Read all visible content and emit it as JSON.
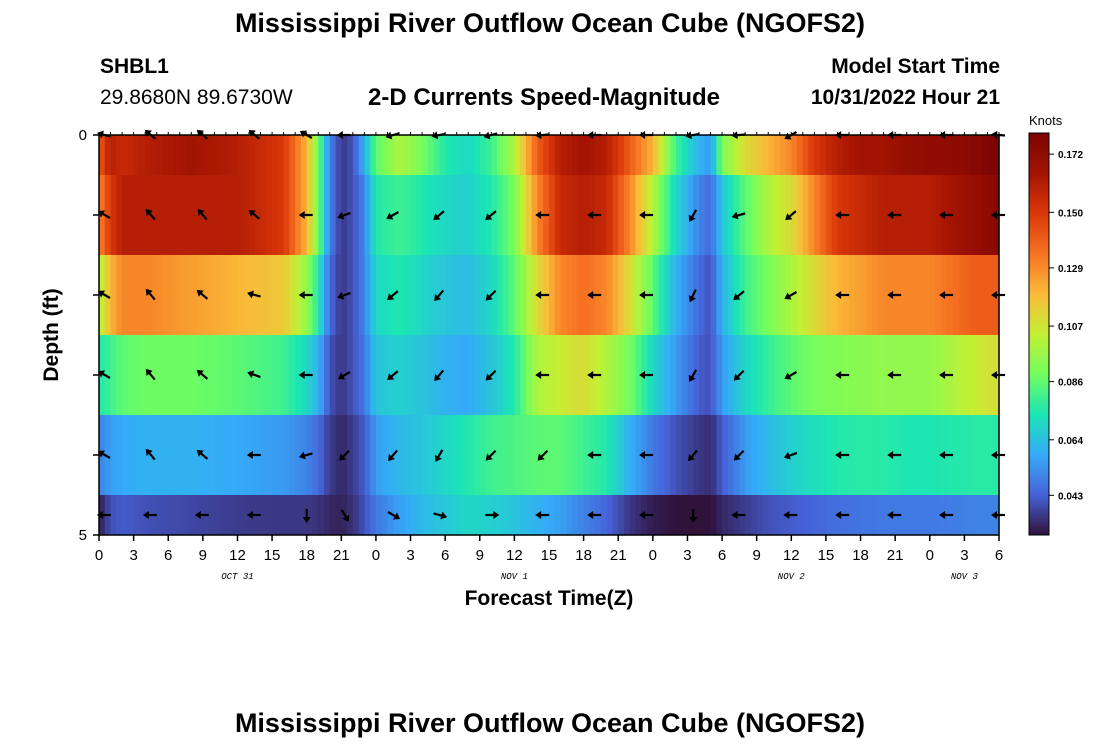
{
  "header": {
    "title": "Mississippi River Outflow Ocean Cube (NGOFS2)",
    "station": "SHBL1",
    "coords": "29.8680N  89.6730W",
    "subtitle": "2-D Currents Speed-Magnitude",
    "start_label": "Model Start Time",
    "start_value": "10/31/2022 Hour 21"
  },
  "footer": {
    "title": "Mississippi River Outflow Ocean Cube (NGOFS2)"
  },
  "chart_data": {
    "type": "heatmap",
    "title": "2-D Currents Speed-Magnitude",
    "xlabel": "Forecast Time(Z)",
    "ylabel": "Depth (ft)",
    "colorbar_label": "Knots",
    "colorbar_ticks": [
      "0.172",
      "0.150",
      "0.129",
      "0.107",
      "0.086",
      "0.064",
      "0.043"
    ],
    "colorbar_range": [
      0.028,
      0.18
    ],
    "x_tick_labels": [
      "0",
      "3",
      "6",
      "9",
      "12",
      "15",
      "18",
      "21",
      "0",
      "3",
      "6",
      "9",
      "12",
      "15",
      "18",
      "21",
      "0",
      "3",
      "6",
      "9",
      "12",
      "15",
      "18",
      "21",
      "0",
      "3",
      "6"
    ],
    "date_labels": [
      {
        "label": "OCT 31",
        "hour": 12
      },
      {
        "label": "NOV 1",
        "hour": 36
      },
      {
        "label": "NOV 2",
        "hour": 60
      },
      {
        "label": "NOV 3",
        "hour": 75
      }
    ],
    "x_range_hours": [
      0,
      78
    ],
    "y_tick_labels": [
      "0",
      "",
      "",
      "",
      "",
      "5"
    ],
    "y_range_ft": [
      0,
      5
    ],
    "depth_bands_ft": [
      [
        0,
        0.5
      ],
      [
        0.5,
        1.5
      ],
      [
        1.5,
        2.5
      ],
      [
        2.5,
        3.5
      ],
      [
        3.5,
        4.5
      ],
      [
        4.5,
        5
      ]
    ],
    "speed_rows": [
      {
        "depth_ft": 0.25,
        "t_hours": [
          0,
          1,
          2,
          4,
          8,
          12,
          16,
          18,
          19,
          20,
          21,
          22,
          23,
          24,
          26,
          28,
          30,
          32,
          34,
          36,
          38,
          40,
          42,
          44,
          46,
          48,
          50,
          52,
          53,
          54,
          56,
          58,
          60,
          62,
          64,
          66,
          68,
          70,
          72,
          74,
          76,
          78
        ],
        "speed": [
          0.14,
          0.16,
          0.155,
          0.16,
          0.165,
          0.16,
          0.15,
          0.12,
          0.09,
          0.05,
          0.035,
          0.04,
          0.06,
          0.085,
          0.1,
          0.09,
          0.075,
          0.07,
          0.08,
          0.1,
          0.14,
          0.16,
          0.165,
          0.16,
          0.14,
          0.12,
          0.08,
          0.06,
          0.055,
          0.09,
          0.11,
          0.12,
          0.13,
          0.15,
          0.16,
          0.165,
          0.165,
          0.17,
          0.172,
          0.172,
          0.175,
          0.18
        ]
      },
      {
        "depth_ft": 1.0,
        "t_hours": [
          0,
          1,
          2,
          4,
          8,
          12,
          16,
          18,
          19,
          20,
          21,
          22,
          23,
          24,
          26,
          28,
          30,
          32,
          34,
          36,
          38,
          40,
          42,
          44,
          46,
          48,
          50,
          52,
          53,
          54,
          56,
          58,
          60,
          62,
          64,
          66,
          68,
          70,
          72,
          74,
          76,
          78
        ],
        "speed": [
          0.13,
          0.15,
          0.16,
          0.16,
          0.16,
          0.16,
          0.15,
          0.12,
          0.09,
          0.05,
          0.035,
          0.04,
          0.05,
          0.075,
          0.08,
          0.075,
          0.07,
          0.068,
          0.075,
          0.09,
          0.13,
          0.155,
          0.16,
          0.155,
          0.13,
          0.1,
          0.07,
          0.05,
          0.045,
          0.065,
          0.085,
          0.1,
          0.11,
          0.13,
          0.15,
          0.155,
          0.16,
          0.16,
          0.16,
          0.165,
          0.17,
          0.175
        ]
      },
      {
        "depth_ft": 2.0,
        "t_hours": [
          0,
          1,
          2,
          4,
          8,
          12,
          16,
          18,
          19,
          20,
          21,
          22,
          23,
          24,
          26,
          28,
          30,
          32,
          34,
          36,
          38,
          40,
          42,
          44,
          46,
          48,
          50,
          52,
          53,
          54,
          56,
          58,
          60,
          62,
          64,
          66,
          68,
          70,
          72,
          74,
          76,
          78
        ],
        "speed": [
          0.1,
          0.12,
          0.13,
          0.13,
          0.125,
          0.12,
          0.115,
          0.095,
          0.075,
          0.045,
          0.035,
          0.04,
          0.05,
          0.07,
          0.075,
          0.07,
          0.065,
          0.063,
          0.07,
          0.085,
          0.11,
          0.13,
          0.135,
          0.13,
          0.11,
          0.085,
          0.06,
          0.045,
          0.04,
          0.06,
          0.08,
          0.09,
          0.1,
          0.11,
          0.12,
          0.125,
          0.13,
          0.13,
          0.13,
          0.135,
          0.14,
          0.14
        ]
      },
      {
        "depth_ft": 3.0,
        "t_hours": [
          0,
          1,
          2,
          4,
          8,
          12,
          16,
          18,
          19,
          20,
          21,
          22,
          23,
          24,
          26,
          28,
          30,
          32,
          34,
          36,
          38,
          40,
          42,
          44,
          46,
          48,
          50,
          52,
          53,
          54,
          56,
          58,
          60,
          62,
          64,
          66,
          68,
          70,
          72,
          74,
          76,
          78
        ],
        "speed": [
          0.075,
          0.08,
          0.085,
          0.088,
          0.088,
          0.085,
          0.08,
          0.07,
          0.06,
          0.04,
          0.035,
          0.04,
          0.048,
          0.065,
          0.068,
          0.065,
          0.06,
          0.058,
          0.065,
          0.075,
          0.1,
          0.105,
          0.11,
          0.1,
          0.09,
          0.07,
          0.055,
          0.042,
          0.04,
          0.055,
          0.07,
          0.078,
          0.085,
          0.09,
          0.092,
          0.093,
          0.095,
          0.095,
          0.095,
          0.1,
          0.105,
          0.11
        ]
      },
      {
        "depth_ft": 4.0,
        "t_hours": [
          0,
          1,
          2,
          4,
          8,
          12,
          16,
          18,
          19,
          20,
          21,
          22,
          23,
          24,
          26,
          28,
          30,
          32,
          34,
          36,
          38,
          40,
          42,
          44,
          46,
          48,
          50,
          52,
          53,
          54,
          56,
          58,
          60,
          62,
          64,
          66,
          68,
          70,
          72,
          74,
          76,
          78
        ],
        "speed": [
          0.05,
          0.056,
          0.058,
          0.06,
          0.06,
          0.058,
          0.055,
          0.05,
          0.045,
          0.036,
          0.032,
          0.036,
          0.042,
          0.055,
          0.062,
          0.065,
          0.07,
          0.075,
          0.08,
          0.082,
          0.085,
          0.085,
          0.08,
          0.075,
          0.06,
          0.048,
          0.04,
          0.035,
          0.033,
          0.042,
          0.055,
          0.062,
          0.068,
          0.072,
          0.075,
          0.076,
          0.076,
          0.074,
          0.074,
          0.075,
          0.076,
          0.076
        ]
      },
      {
        "depth_ft": 4.75,
        "t_hours": [
          0,
          1,
          2,
          4,
          8,
          12,
          16,
          18,
          19,
          20,
          21,
          22,
          23,
          24,
          26,
          28,
          30,
          32,
          34,
          36,
          38,
          40,
          42,
          44,
          46,
          48,
          50,
          52,
          53,
          54,
          56,
          58,
          60,
          62,
          64,
          66,
          68,
          70,
          72,
          74,
          76,
          78
        ],
        "speed": [
          0.03,
          0.04,
          0.042,
          0.04,
          0.038,
          0.036,
          0.035,
          0.035,
          0.034,
          0.032,
          0.031,
          0.034,
          0.04,
          0.048,
          0.056,
          0.062,
          0.066,
          0.07,
          0.068,
          0.065,
          0.06,
          0.056,
          0.05,
          0.044,
          0.035,
          0.03,
          0.028,
          0.027,
          0.028,
          0.032,
          0.036,
          0.04,
          0.042,
          0.044,
          0.046,
          0.047,
          0.048,
          0.048,
          0.048,
          0.049,
          0.05,
          0.05
        ]
      }
    ],
    "arrow_hours": [
      0.5,
      4.5,
      9,
      13.5,
      18,
      21.3,
      25.5,
      29.5,
      34,
      38.5,
      43,
      47.5,
      51.5,
      55.5,
      60,
      64.5,
      69,
      73.5,
      78
    ],
    "arrow_rows": [
      {
        "depth_ft": 0.0,
        "dir_deg": [
          345,
          320,
          320,
          320,
          330,
          0,
          15,
          10,
          15,
          5,
          0,
          0,
          10,
          5,
          30,
          0,
          0,
          0,
          355
        ]
      },
      {
        "depth_ft": 1.0,
        "dir_deg": [
          330,
          310,
          310,
          320,
          0,
          20,
          30,
          40,
          40,
          0,
          0,
          0,
          60,
          15,
          40,
          0,
          0,
          0,
          0
        ]
      },
      {
        "depth_ft": 2.0,
        "dir_deg": [
          330,
          310,
          320,
          345,
          0,
          20,
          40,
          50,
          45,
          0,
          0,
          0,
          65,
          40,
          30,
          0,
          0,
          0,
          0
        ]
      },
      {
        "depth_ft": 3.0,
        "dir_deg": [
          330,
          310,
          320,
          340,
          0,
          30,
          40,
          50,
          45,
          0,
          0,
          0,
          60,
          45,
          30,
          0,
          0,
          0,
          0
        ]
      },
      {
        "depth_ft": 4.0,
        "dir_deg": [
          330,
          310,
          320,
          0,
          15,
          45,
          50,
          60,
          45,
          45,
          0,
          0,
          50,
          45,
          20,
          0,
          0,
          0,
          0
        ]
      },
      {
        "depth_ft": 4.75,
        "dir_deg": [
          0,
          0,
          0,
          0,
          90,
          120,
          150,
          165,
          180,
          0,
          0,
          0,
          90,
          0,
          0,
          0,
          0,
          0,
          0
        ]
      }
    ]
  }
}
